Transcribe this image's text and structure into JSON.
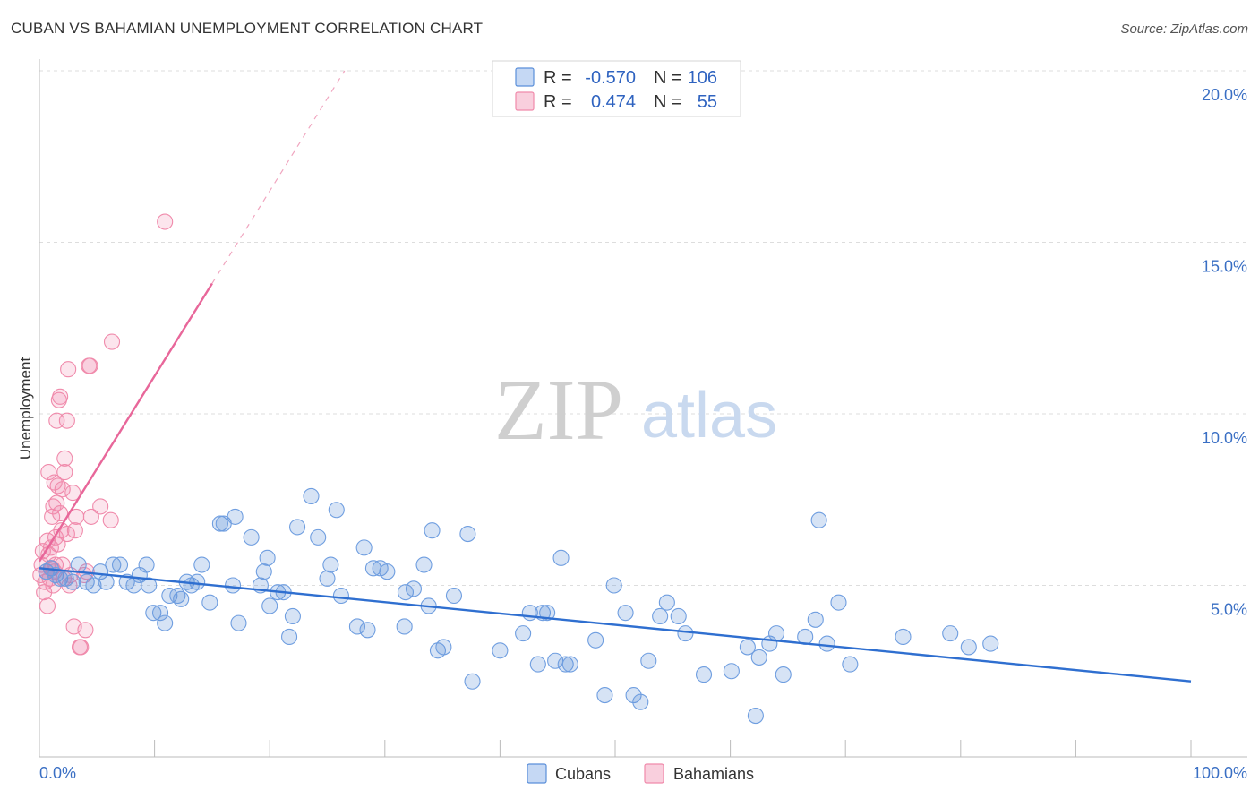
{
  "header": {
    "title": "CUBAN VS BAHAMIAN UNEMPLOYMENT CORRELATION CHART",
    "source": "Source: ZipAtlas.com"
  },
  "watermark": {
    "zip": "ZIP",
    "atlas": "atlas"
  },
  "colors": {
    "blue": "#5b8fd9",
    "blue_line": "#2f6fd0",
    "pink": "#f08aab",
    "pink_line": "#e8679a"
  },
  "legend": {
    "rows": [
      {
        "r_label": "R =",
        "r_value": "-0.570",
        "n_label": "N =",
        "n_value": "106",
        "color": "blue"
      },
      {
        "r_label": "R =",
        "r_value": "0.474",
        "n_label": "N =",
        "n_value": "55",
        "color": "pink"
      }
    ]
  },
  "bottom_legend": {
    "cubans": "Cubans",
    "bahamians": "Bahamians"
  },
  "chart_data": {
    "type": "scatter",
    "title": "CUBAN VS BAHAMIAN UNEMPLOYMENT CORRELATION CHART",
    "xlabel": "",
    "ylabel": "Unemployment",
    "xlim": [
      0,
      100
    ],
    "ylim": [
      0,
      20
    ],
    "x_tick_labels": {
      "left": "0.0%",
      "right": "100.0%"
    },
    "y_ticks": [
      {
        "value": 5,
        "label": "5.0%"
      },
      {
        "value": 10,
        "label": "10.0%"
      },
      {
        "value": 15,
        "label": "15.0%"
      },
      {
        "value": 20,
        "label": "20.0%"
      }
    ],
    "grid": true,
    "series": [
      {
        "name": "Cubans",
        "color": "blue",
        "r": -0.57,
        "n": 106,
        "trend": {
          "x0": 0,
          "y0": 5.5,
          "x1": 100,
          "y1": 2.2
        },
        "points": [
          [
            0.6,
            5.4
          ],
          [
            1.0,
            5.5
          ],
          [
            1.4,
            5.3
          ],
          [
            1.8,
            5.2
          ],
          [
            2.3,
            5.2
          ],
          [
            2.9,
            5.1
          ],
          [
            3.4,
            5.6
          ],
          [
            4.1,
            5.1
          ],
          [
            4.7,
            5.0
          ],
          [
            5.3,
            5.4
          ],
          [
            5.8,
            5.1
          ],
          [
            6.4,
            5.6
          ],
          [
            7.0,
            5.6
          ],
          [
            7.6,
            5.1
          ],
          [
            8.2,
            5.0
          ],
          [
            8.7,
            5.3
          ],
          [
            9.3,
            5.6
          ],
          [
            9.5,
            5.0
          ],
          [
            9.9,
            4.2
          ],
          [
            10.5,
            4.2
          ],
          [
            10.9,
            3.9
          ],
          [
            11.3,
            4.7
          ],
          [
            12.0,
            4.7
          ],
          [
            12.3,
            4.6
          ],
          [
            12.8,
            5.1
          ],
          [
            13.2,
            5.0
          ],
          [
            13.7,
            5.1
          ],
          [
            14.1,
            5.6
          ],
          [
            14.8,
            4.5
          ],
          [
            15.7,
            6.8
          ],
          [
            16.0,
            6.8
          ],
          [
            16.8,
            5.0
          ],
          [
            17.0,
            7.0
          ],
          [
            17.3,
            3.9
          ],
          [
            18.4,
            6.4
          ],
          [
            19.2,
            5.0
          ],
          [
            19.5,
            5.4
          ],
          [
            19.8,
            5.8
          ],
          [
            20.0,
            4.4
          ],
          [
            20.7,
            4.8
          ],
          [
            21.2,
            4.8
          ],
          [
            21.7,
            3.5
          ],
          [
            22.0,
            4.1
          ],
          [
            22.4,
            6.7
          ],
          [
            23.6,
            7.6
          ],
          [
            24.2,
            6.4
          ],
          [
            25.0,
            5.2
          ],
          [
            25.3,
            5.6
          ],
          [
            25.8,
            7.2
          ],
          [
            26.2,
            4.7
          ],
          [
            27.6,
            3.8
          ],
          [
            28.2,
            6.1
          ],
          [
            28.5,
            3.7
          ],
          [
            29.0,
            5.5
          ],
          [
            29.6,
            5.5
          ],
          [
            30.2,
            5.4
          ],
          [
            31.7,
            3.8
          ],
          [
            31.8,
            4.8
          ],
          [
            32.5,
            4.9
          ],
          [
            33.4,
            5.6
          ],
          [
            33.8,
            4.4
          ],
          [
            34.1,
            6.6
          ],
          [
            34.6,
            3.1
          ],
          [
            35.1,
            3.2
          ],
          [
            36.0,
            4.7
          ],
          [
            37.2,
            6.5
          ],
          [
            37.6,
            2.2
          ],
          [
            40.0,
            3.1
          ],
          [
            42.0,
            3.6
          ],
          [
            42.6,
            4.2
          ],
          [
            43.3,
            2.7
          ],
          [
            43.7,
            4.2
          ],
          [
            44.1,
            4.2
          ],
          [
            44.8,
            2.8
          ],
          [
            45.3,
            5.8
          ],
          [
            45.7,
            2.7
          ],
          [
            46.1,
            2.7
          ],
          [
            48.3,
            3.4
          ],
          [
            49.1,
            1.8
          ],
          [
            49.9,
            5.0
          ],
          [
            50.9,
            4.2
          ],
          [
            51.6,
            1.8
          ],
          [
            52.2,
            1.6
          ],
          [
            52.9,
            2.8
          ],
          [
            53.9,
            4.1
          ],
          [
            54.5,
            4.5
          ],
          [
            56.1,
            3.6
          ],
          [
            57.7,
            2.4
          ],
          [
            60.1,
            2.5
          ],
          [
            61.5,
            3.2
          ],
          [
            62.2,
            1.2
          ],
          [
            62.5,
            2.9
          ],
          [
            63.4,
            3.3
          ],
          [
            64.0,
            3.6
          ],
          [
            64.6,
            2.4
          ],
          [
            66.5,
            3.5
          ],
          [
            67.4,
            4.0
          ],
          [
            67.7,
            6.9
          ],
          [
            68.4,
            3.3
          ],
          [
            69.4,
            4.5
          ],
          [
            70.4,
            2.7
          ],
          [
            75.0,
            3.5
          ],
          [
            79.1,
            3.6
          ],
          [
            80.7,
            3.2
          ],
          [
            82.6,
            3.3
          ],
          [
            55.5,
            4.1
          ]
        ]
      },
      {
        "name": "Bahamians",
        "color": "pink",
        "r": 0.474,
        "n": 55,
        "trend": {
          "x0": 0,
          "y0": 5.7,
          "x1": 15,
          "y1": 13.8,
          "dashed_to": {
            "x": 26.5,
            "y": 20.0
          }
        },
        "points": [
          [
            0.1,
            5.3
          ],
          [
            0.2,
            5.6
          ],
          [
            0.3,
            6.0
          ],
          [
            0.4,
            4.8
          ],
          [
            0.5,
            5.1
          ],
          [
            0.6,
            5.4
          ],
          [
            0.7,
            6.3
          ],
          [
            0.7,
            4.4
          ],
          [
            0.8,
            5.9
          ],
          [
            0.8,
            8.3
          ],
          [
            0.9,
            5.2
          ],
          [
            1.0,
            5.5
          ],
          [
            1.0,
            6.1
          ],
          [
            1.1,
            7.0
          ],
          [
            1.1,
            5.5
          ],
          [
            1.2,
            5.0
          ],
          [
            1.2,
            7.3
          ],
          [
            1.3,
            8.0
          ],
          [
            1.4,
            5.6
          ],
          [
            1.4,
            6.4
          ],
          [
            1.5,
            7.4
          ],
          [
            1.5,
            9.8
          ],
          [
            1.6,
            6.2
          ],
          [
            1.6,
            7.9
          ],
          [
            1.7,
            10.4
          ],
          [
            1.8,
            7.1
          ],
          [
            1.8,
            10.5
          ],
          [
            1.9,
            6.6
          ],
          [
            2.0,
            5.6
          ],
          [
            2.0,
            7.8
          ],
          [
            2.1,
            5.2
          ],
          [
            2.2,
            8.7
          ],
          [
            2.2,
            8.3
          ],
          [
            2.4,
            9.8
          ],
          [
            2.4,
            6.5
          ],
          [
            2.5,
            11.3
          ],
          [
            2.6,
            5.0
          ],
          [
            2.7,
            5.3
          ],
          [
            2.9,
            7.7
          ],
          [
            3.0,
            3.8
          ],
          [
            3.1,
            6.6
          ],
          [
            3.2,
            7.0
          ],
          [
            3.5,
            3.2
          ],
          [
            3.6,
            3.2
          ],
          [
            3.9,
            5.3
          ],
          [
            4.0,
            3.7
          ],
          [
            4.1,
            5.4
          ],
          [
            4.3,
            11.4
          ],
          [
            4.4,
            11.4
          ],
          [
            4.5,
            7.0
          ],
          [
            5.3,
            7.3
          ],
          [
            6.2,
            6.9
          ],
          [
            6.3,
            12.1
          ],
          [
            10.9,
            15.6
          ],
          [
            1.3,
            5.4
          ]
        ]
      }
    ]
  }
}
